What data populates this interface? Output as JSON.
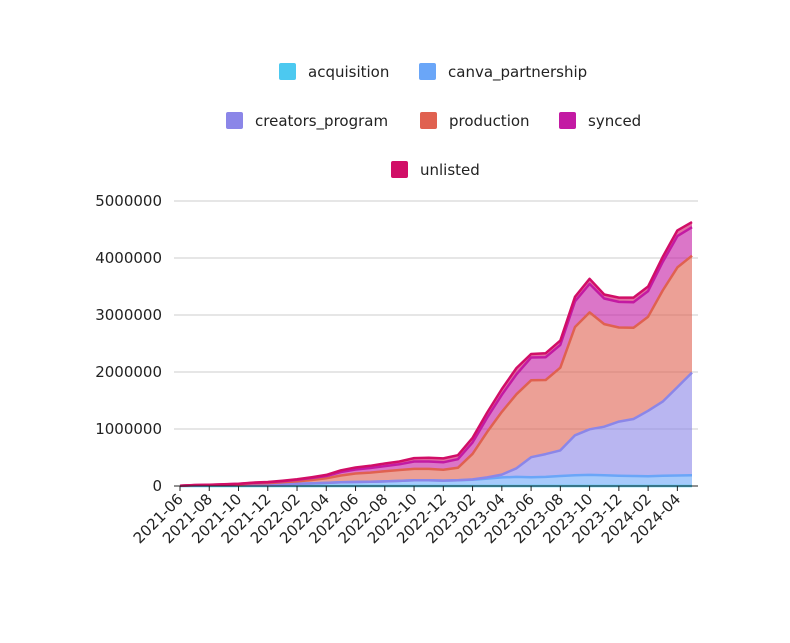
{
  "chart_data": {
    "type": "area",
    "stacked": true,
    "title": "",
    "xlabel": "",
    "ylabel": "",
    "ylim": [
      0,
      5000000
    ],
    "yticks": [
      0,
      1000000,
      2000000,
      3000000,
      4000000,
      5000000
    ],
    "ytick_labels": [
      "0",
      "1000000",
      "2000000",
      "3000000",
      "4000000",
      "5000000"
    ],
    "grid": true,
    "legend_position": "top",
    "x": [
      "2021-06",
      "2021-07",
      "2021-08",
      "2021-09",
      "2021-10",
      "2021-11",
      "2021-12",
      "2022-01",
      "2022-02",
      "2022-03",
      "2022-04",
      "2022-05",
      "2022-06",
      "2022-07",
      "2022-08",
      "2022-09",
      "2022-10",
      "2022-11",
      "2022-12",
      "2023-01",
      "2023-02",
      "2023-03",
      "2023-04",
      "2023-05",
      "2023-06",
      "2023-07",
      "2023-08",
      "2023-09",
      "2023-10",
      "2023-11",
      "2023-12",
      "2024-01",
      "2024-02",
      "2024-03",
      "2024-04",
      "2024-05"
    ],
    "xtick_labels": [
      "2021-06",
      "2021-08",
      "2021-10",
      "2021-12",
      "2022-02",
      "2022-04",
      "2022-06",
      "2022-08",
      "2022-10",
      "2022-12",
      "2023-02",
      "2023-04",
      "2023-06",
      "2023-08",
      "2023-10",
      "2023-12",
      "2024-02",
      "2024-04"
    ],
    "series": [
      {
        "name": "acquisition",
        "color": "#4cc9f0",
        "values": [
          0,
          0,
          0,
          0,
          0,
          0,
          0,
          0,
          0,
          0,
          0,
          0,
          0,
          0,
          0,
          0,
          0,
          0,
          0,
          0,
          0,
          0,
          0,
          0,
          0,
          0,
          0,
          0,
          0,
          0,
          0,
          0,
          0,
          0,
          0,
          0
        ]
      },
      {
        "name": "canva_partnership",
        "color": "#6aa6f8",
        "values": [
          5000,
          8000,
          12000,
          15000,
          18000,
          25000,
          30000,
          35000,
          40000,
          45000,
          55000,
          65000,
          70000,
          75000,
          80000,
          90000,
          100000,
          100000,
          95000,
          100000,
          110000,
          130000,
          150000,
          160000,
          155000,
          160000,
          175000,
          190000,
          195000,
          190000,
          180000,
          175000,
          170000,
          180000,
          185000,
          190000
        ]
      },
      {
        "name": "creators_program",
        "color": "#8b86e8",
        "values": [
          0,
          0,
          0,
          0,
          0,
          0,
          0,
          0,
          0,
          0,
          0,
          0,
          0,
          0,
          0,
          0,
          0,
          0,
          0,
          0,
          5000,
          20000,
          50000,
          150000,
          350000,
          400000,
          450000,
          700000,
          800000,
          850000,
          950000,
          1000000,
          1150000,
          1300000,
          1550000,
          1800000
        ]
      },
      {
        "name": "production",
        "color": "#e06150",
        "values": [
          0,
          5000,
          5000,
          8000,
          10000,
          20000,
          20000,
          30000,
          40000,
          60000,
          80000,
          120000,
          150000,
          160000,
          180000,
          190000,
          200000,
          200000,
          190000,
          220000,
          450000,
          800000,
          1100000,
          1300000,
          1350000,
          1300000,
          1450000,
          1900000,
          2050000,
          1800000,
          1650000,
          1600000,
          1650000,
          1950000,
          2100000,
          2050000
        ]
      },
      {
        "name": "synced",
        "color": "#c31aa3",
        "values": [
          0,
          3000,
          3000,
          5000,
          8000,
          10000,
          15000,
          20000,
          30000,
          35000,
          40000,
          60000,
          70000,
          80000,
          90000,
          100000,
          130000,
          130000,
          130000,
          150000,
          200000,
          250000,
          300000,
          350000,
          400000,
          400000,
          400000,
          450000,
          500000,
          450000,
          450000,
          450000,
          450000,
          500000,
          550000,
          500000
        ]
      },
      {
        "name": "unlisted",
        "color": "#d10e67",
        "values": [
          0,
          2000,
          2000,
          3000,
          3000,
          5000,
          5000,
          8000,
          10000,
          15000,
          20000,
          30000,
          35000,
          40000,
          45000,
          50000,
          60000,
          65000,
          70000,
          70000,
          80000,
          90000,
          100000,
          110000,
          60000,
          70000,
          75000,
          80000,
          90000,
          70000,
          75000,
          80000,
          80000,
          90000,
          100000,
          90000
        ]
      }
    ]
  }
}
